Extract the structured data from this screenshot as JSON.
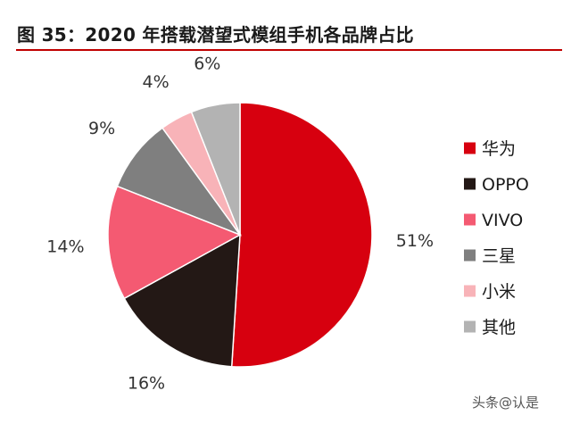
{
  "figure": {
    "title": "图 35：2020 年搭载潜望式模组手机各品牌占比",
    "watermark": "头条@认是"
  },
  "colors": {
    "title_rule": "#c00000"
  },
  "chart_data": {
    "type": "pie",
    "title": "",
    "legend_position": "right",
    "start_angle_deg": 0,
    "direction": "clockwise",
    "slices": [
      {
        "label": "华为",
        "value": 51,
        "value_label": "51%",
        "color": "#d7000f"
      },
      {
        "label": "OPPO",
        "value": 16,
        "value_label": "16%",
        "color": "#231815"
      },
      {
        "label": "VIVO",
        "value": 14,
        "value_label": "14%",
        "color": "#f45a72"
      },
      {
        "label": "三星",
        "value": 9,
        "value_label": "9%",
        "color": "#7f7f7f"
      },
      {
        "label": "小米",
        "value": 4,
        "value_label": "4%",
        "color": "#f8b3b8"
      },
      {
        "label": "其他",
        "value": 6,
        "value_label": "6%",
        "color": "#b3b3b3"
      }
    ]
  }
}
